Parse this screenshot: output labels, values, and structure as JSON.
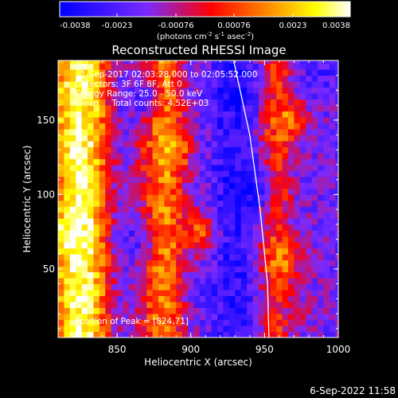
{
  "chart_data": {
    "type": "heatmap",
    "title": "Reconstructed RHESSI Image",
    "xlabel": "Heliocentric X (arcsec)",
    "ylabel": "Heliocentric Y (arcsec)",
    "xlim": [
      810,
      1000
    ],
    "ylim": [
      4,
      190
    ],
    "x_ticks": [
      "850",
      "900",
      "950",
      "1000"
    ],
    "x_tick_values": [
      850,
      900,
      950,
      1000
    ],
    "y_ticks": [
      "50",
      "100",
      "150"
    ],
    "y_tick_values": [
      50,
      100,
      150
    ],
    "colorbar": {
      "min": -0.0038,
      "max": 0.0038,
      "ticks": [
        "-0.0038",
        "-0.0023",
        "-0.00076",
        "0.00076",
        "0.0023",
        "0.0038"
      ],
      "tick_values": [
        -0.0038,
        -0.0023,
        -0.00076,
        0.00076,
        0.0023,
        0.0038
      ],
      "units_text": "(photons cm",
      "units_exp1": "-2",
      "units_mid": " s",
      "units_exp2": "-1",
      "units_tail": " asec",
      "units_exp3": "-2",
      "units_close": ")",
      "colors": [
        "#0000ff",
        "#7a2aff",
        "#ff0000",
        "#ff8c00",
        "#ffff00",
        "#ffffff"
      ]
    },
    "info_lines": [
      "1-Sep-2017 02:03:28.000 to 02:05:52.000",
      "Detectors: 3F 6F 8F, Att 0",
      "Energy Range: 25.0 - 50.0 keV",
      "Clean     Total counts: 4.52E+03"
    ],
    "peak_label": "Position of Peak = [824,71]",
    "peak": [
      824,
      71
    ],
    "limb_curve": [
      [
        929,
        190
      ],
      [
        940,
        140
      ],
      [
        947,
        90
      ],
      [
        952,
        40
      ],
      [
        953,
        4
      ]
    ],
    "bands": [
      {
        "x_center": 825,
        "width": 22,
        "value": 0.0034
      },
      {
        "x_center": 860,
        "width": 12,
        "value": -0.0018
      },
      {
        "x_center": 883,
        "width": 18,
        "value": 0.0016
      },
      {
        "x_center": 907,
        "width": 12,
        "value": -0.0012
      },
      {
        "x_center": 932,
        "width": 22,
        "value": -0.003
      },
      {
        "x_center": 960,
        "width": 14,
        "value": 0.0006
      },
      {
        "x_center": 985,
        "width": 18,
        "value": -0.0016
      }
    ],
    "blobs": [
      {
        "x": 932,
        "y": 170,
        "value": -0.0034
      },
      {
        "x": 940,
        "y": 105,
        "value": -0.0036
      },
      {
        "x": 915,
        "y": 35,
        "value": -0.0026
      },
      {
        "x": 965,
        "y": 150,
        "value": 0.0015
      },
      {
        "x": 962,
        "y": 55,
        "value": 0.0016
      },
      {
        "x": 978,
        "y": 20,
        "value": -0.001
      },
      {
        "x": 887,
        "y": 130,
        "value": 0.002
      },
      {
        "x": 905,
        "y": 75,
        "value": 0.001
      },
      {
        "x": 865,
        "y": 165,
        "value": -0.0024
      },
      {
        "x": 862,
        "y": 70,
        "value": -0.0022
      },
      {
        "x": 987,
        "y": 180,
        "value": -0.0024
      },
      {
        "x": 820,
        "y": 71,
        "value": 0.0038
      },
      {
        "x": 822,
        "y": 165,
        "value": 0.0028
      }
    ]
  },
  "footer": {
    "timestamp": "6-Sep-2022 11:58"
  }
}
